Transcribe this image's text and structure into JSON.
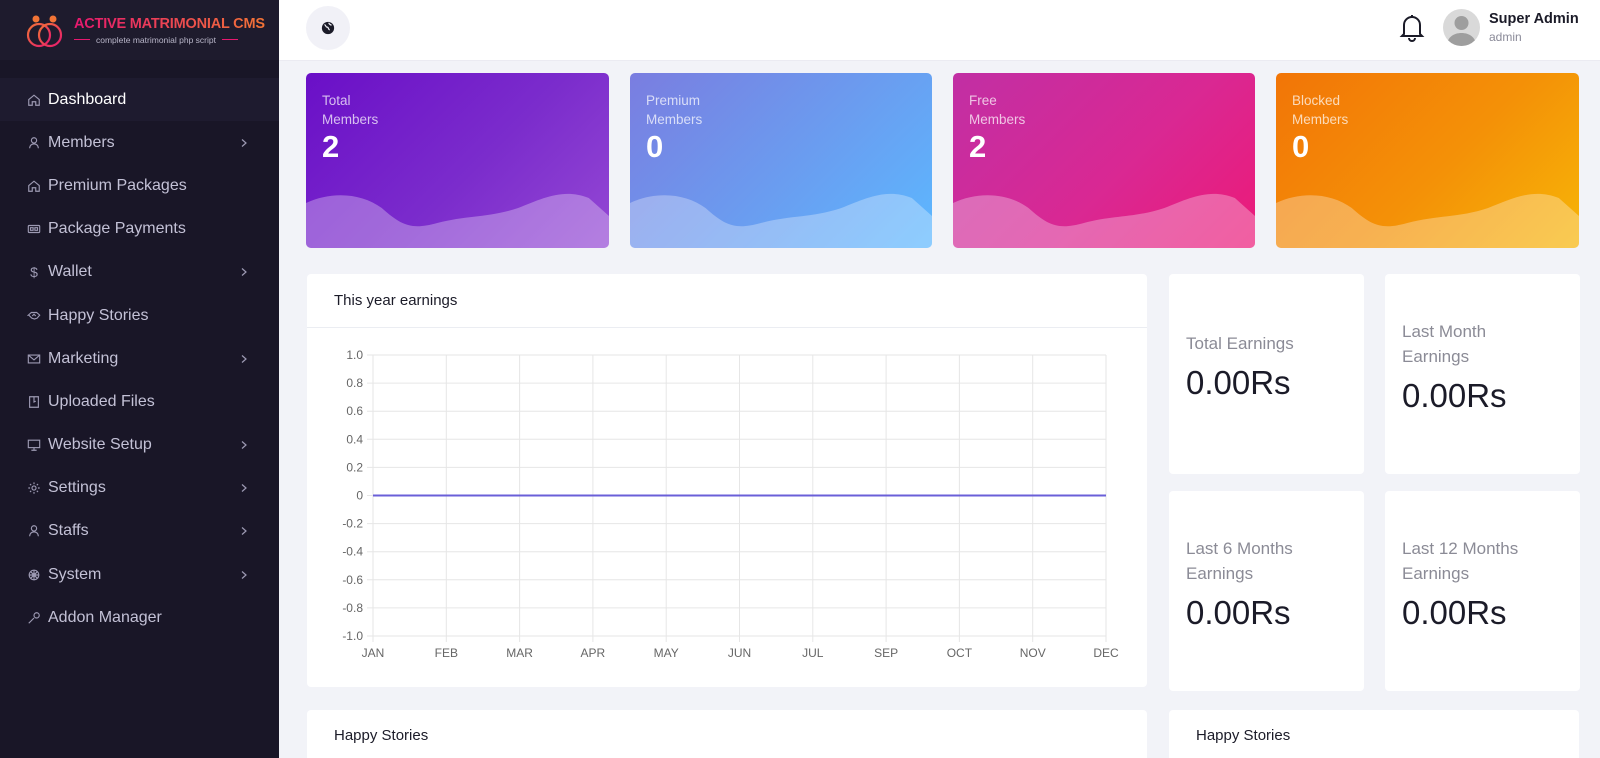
{
  "brand": {
    "title": "ACTIVE MATRIMONIAL CMS",
    "subtitle": "complete matrimonial php script",
    "colors": {
      "gradient_start": "#e6186f",
      "gradient_end": "#f27436"
    }
  },
  "sidebar": {
    "items": [
      {
        "label": "Dashboard",
        "icon": "home-icon",
        "has_submenu": false,
        "active": true
      },
      {
        "label": "Members",
        "icon": "user-icon",
        "has_submenu": true,
        "active": false
      },
      {
        "label": "Premium Packages",
        "icon": "home-icon",
        "has_submenu": false,
        "active": false
      },
      {
        "label": "Package Payments",
        "icon": "money-icon",
        "has_submenu": false,
        "active": false
      },
      {
        "label": "Wallet",
        "icon": "dollar-icon",
        "has_submenu": true,
        "active": false
      },
      {
        "label": "Happy Stories",
        "icon": "handshake-icon",
        "has_submenu": false,
        "active": false
      },
      {
        "label": "Marketing",
        "icon": "mail-icon",
        "has_submenu": true,
        "active": false
      },
      {
        "label": "Uploaded Files",
        "icon": "file-icon",
        "has_submenu": false,
        "active": false
      },
      {
        "label": "Website Setup",
        "icon": "desktop-icon",
        "has_submenu": true,
        "active": false
      },
      {
        "label": "Settings",
        "icon": "gear-icon",
        "has_submenu": true,
        "active": false
      },
      {
        "label": "Staffs",
        "icon": "user-icon",
        "has_submenu": true,
        "active": false
      },
      {
        "label": "System",
        "icon": "dharma-wheel-icon",
        "has_submenu": true,
        "active": false
      },
      {
        "label": "Addon Manager",
        "icon": "wrench-icon",
        "has_submenu": false,
        "active": false
      }
    ]
  },
  "topbar": {
    "language_icon": "globe-icon",
    "notification_icon": "bell-icon",
    "user": {
      "name": "Super Admin",
      "role": "admin"
    }
  },
  "stats": [
    {
      "title_line1": "Total",
      "title_line2": "Members",
      "value": "2",
      "color": "#6a0fc7"
    },
    {
      "title_line1": "Premium",
      "title_line2": "Members",
      "value": "0",
      "color": "#6a9df0"
    },
    {
      "title_line1": "Free",
      "title_line2": "Members",
      "value": "2",
      "color": "#d92893"
    },
    {
      "title_line1": "Blocked",
      "title_line2": "Members",
      "value": "0",
      "color": "#f49107"
    }
  ],
  "earnings_chart": {
    "title": "This year earnings"
  },
  "chart_data": {
    "type": "line",
    "title": "This year earnings",
    "categories": [
      "JAN",
      "FEB",
      "MAR",
      "APR",
      "MAY",
      "JUN",
      "JUL",
      "SEP",
      "OCT",
      "NOV",
      "DEC"
    ],
    "series": [
      {
        "name": "Earnings",
        "values": [
          0,
          0,
          0,
          0,
          0,
          0,
          0,
          0,
          0,
          0,
          0
        ],
        "color": "#6a5fd8"
      }
    ],
    "xlabel": "",
    "ylabel": "",
    "ylim": [
      -1.0,
      1.0
    ],
    "yticks": [
      "1.0",
      "0.8",
      "0.6",
      "0.4",
      "0.2",
      "0",
      "-0.2",
      "-0.4",
      "-0.6",
      "-0.8",
      "-1.0"
    ],
    "grid": true,
    "legend": "none"
  },
  "earnings_cards": [
    {
      "label_line1": "Total Earnings",
      "label_line2": "",
      "value": "0.00Rs"
    },
    {
      "label_line1": "Last Month",
      "label_line2": "Earnings",
      "value": "0.00Rs"
    },
    {
      "label_line1": "Last 6 Months",
      "label_line2": "Earnings",
      "value": "0.00Rs"
    },
    {
      "label_line1": "Last 12 Months",
      "label_line2": "Earnings",
      "value": "0.00Rs"
    }
  ],
  "happy_stories": [
    {
      "title": "Happy Stories"
    },
    {
      "title": "Happy Stories"
    }
  ]
}
